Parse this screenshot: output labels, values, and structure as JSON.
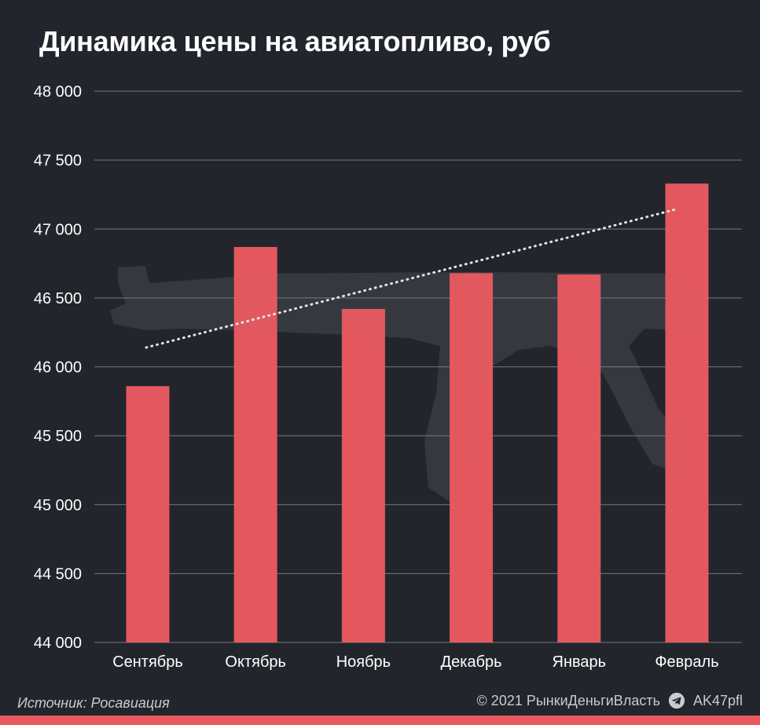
{
  "title": "Динамика цены на авиатопливо, руб",
  "footer": {
    "source": "Источник: Росавиация",
    "copyright": "© 2021  РынкиДеньгиВласть",
    "channel": "AK47pfl"
  },
  "colors": {
    "background": "#23252c",
    "bar": "#e85a60",
    "grid": "#8a8c92",
    "trend": "#e6e6e6",
    "watermark": "#3a3c44"
  },
  "chart_data": {
    "type": "bar",
    "categories": [
      "Сентябрь",
      "Октябрь",
      "Ноябрь",
      "Декабрь",
      "Январь",
      "Февраль"
    ],
    "values": [
      45860,
      46870,
      46420,
      46680,
      46670,
      47330
    ],
    "ylim": [
      44000,
      48000
    ],
    "y_ticks": [
      44000,
      44500,
      45000,
      45500,
      46000,
      46500,
      47000,
      47500,
      48000
    ],
    "y_tick_labels": [
      "44 000",
      "44 500",
      "45 000",
      "45 500",
      "46 000",
      "46 500",
      "47 000",
      "47 500",
      "48 000"
    ],
    "trendline": {
      "style": "dotted",
      "start": 46140,
      "end": 47140
    },
    "grid": true,
    "legend": "none"
  }
}
